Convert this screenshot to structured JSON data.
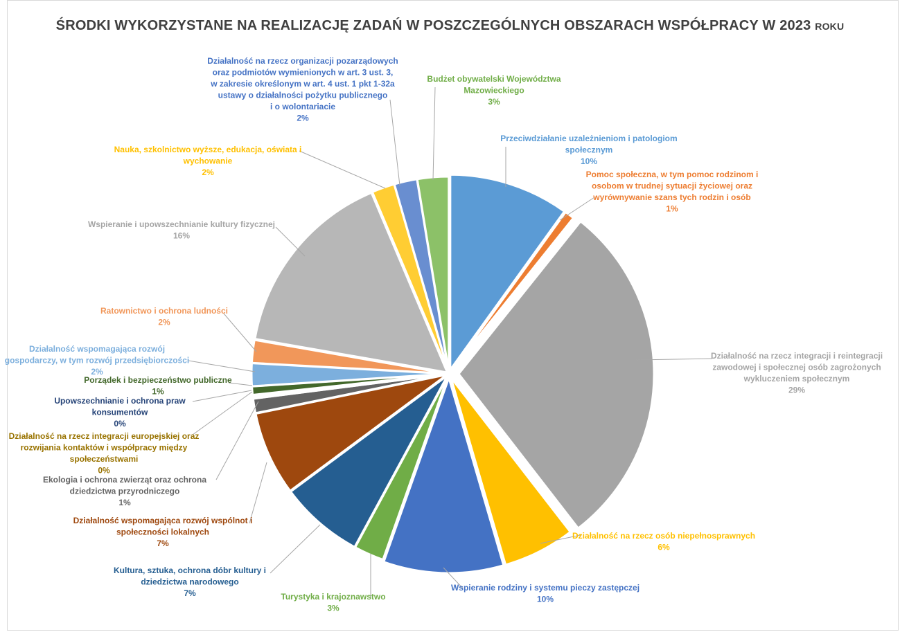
{
  "chart_data": {
    "type": "pie",
    "title": "ŚRODKI WYKORZYSTANE NA REALIZACJĘ ZADAŃ W POSZCZEGÓLNYCH OBSZARACH WSPÓŁPRACY",
    "title_tail_year": "W 2023",
    "title_tail_word": "ROKU",
    "slices": [
      {
        "name": "Przeciwdziałanie uzależnieniom i patologiom społecznym",
        "value": 10,
        "label": "10%",
        "color": "#5B9BD5",
        "lines": [
          "Przeciwdziałanie uzależnieniom i patologiom",
          "społecznym"
        ]
      },
      {
        "name": "Pomoc społeczna, w tym pomoc rodzinom i osobom w trudnej sytuacji życiowej oraz wyrównywanie szans tych rodzin i osób",
        "value": 0.8,
        "label": "1%",
        "color": "#ED7D31",
        "lines": [
          "Pomoc społeczna, w tym pomoc rodzinom i",
          "osobom w trudnej sytuacji życiowej oraz",
          "wyrównywanie szans tych rodzin i osób"
        ]
      },
      {
        "name": "Działalność na rzecz integracji i reintegracji zawodowej i społecznej osób zagrożonych wykluczeniem społecznym",
        "value": 29,
        "label": "29%",
        "color": "#A5A5A5",
        "lines": [
          "Działalność na rzecz integracji i reintegracji",
          "zawodowej i społecznej osób zagrożonych",
          "wykluczeniem społecznym"
        ]
      },
      {
        "name": "Działalność na rzecz osób niepełnosprawnych",
        "value": 6,
        "label": "6%",
        "color": "#FFC000",
        "lines": [
          "Działalność na rzecz osób niepełnosprawnych"
        ]
      },
      {
        "name": "Wspieranie rodziny i systemu pieczy zastępczej",
        "value": 10,
        "label": "10%",
        "color": "#4472C4",
        "lines": [
          "Wspieranie rodziny i systemu pieczy zastępczej"
        ]
      },
      {
        "name": "Turystyka i krajoznawstwo",
        "value": 2.5,
        "label": "3%",
        "color": "#70AD47",
        "lines": [
          "Turystyka i krajoznawstwo"
        ]
      },
      {
        "name": "Kultura, sztuka, ochrona dóbr kultury i dziedzictwa narodowego",
        "value": 7,
        "label": "7%",
        "color": "#255E91",
        "lines": [
          "Kultura, sztuka, ochrona dóbr kultury i",
          "dziedzictwa narodowego"
        ]
      },
      {
        "name": "Działalność wspomagająca rozwój wspólnot i społeczności lokalnych",
        "value": 7,
        "label": "7%",
        "color": "#9E480E",
        "lines": [
          "Działalność wspomagająca rozwój wspólnot i",
          "społeczności lokalnych"
        ]
      },
      {
        "name": "Ekologia i ochrona zwierząt oraz ochrona dziedzictwa przyrodniczego",
        "value": 1.2,
        "label": "1%",
        "color": "#636363",
        "lines": [
          "Ekologia i ochrona zwierząt oraz ochrona",
          "dziedzictwa przyrodniczego"
        ]
      },
      {
        "name": "Działalność na rzecz integracji europejskiej oraz rozwijania kontaktów i współpracy między społeczeństwami",
        "value": 0.15,
        "label": "0%",
        "color": "#997300",
        "lines": [
          "Działalność na rzecz integracji europejskiej oraz",
          "rozwijania kontaktów i współpracy między",
          "społeczeństwami"
        ]
      },
      {
        "name": "Upowszechnianie i ochrona praw konsumentów",
        "value": 0.15,
        "label": "0%",
        "color": "#264478",
        "lines": [
          "Upowszechnianie i ochrona praw",
          "konsumentów"
        ]
      },
      {
        "name": "Porządek i bezpieczeństwo publiczne",
        "value": 0.7,
        "label": "1%",
        "color": "#43682B",
        "lines": [
          "Porządek i bezpieczeństwo publiczne"
        ]
      },
      {
        "name": "Działalność wspomagająca rozwój gospodarczy, w tym rozwój przedsiębiorczości",
        "value": 1.9,
        "label": "2%",
        "color": "#7CAFDD",
        "lines": [
          "Działalność wspomagająca rozwój",
          "gospodarczy, w tym rozwój przedsiębiorczości"
        ]
      },
      {
        "name": "Ratownictwo i ochrona ludności",
        "value": 1.9,
        "label": "2%",
        "color": "#F1975A",
        "lines": [
          "Ratownictwo i ochrona ludności"
        ]
      },
      {
        "name": "Wspieranie i upowszechnianie kultury fizycznej",
        "value": 16,
        "label": "16%",
        "color": "#B7B7B7",
        "lines": [
          "Wspieranie i upowszechnianie kultury fizycznej"
        ]
      },
      {
        "name": "Nauka, szkolnictwo wyższe, edukacja, oświata i wychowanie",
        "value": 1.9,
        "label": "2%",
        "color": "#FFCD33",
        "lines": [
          "Nauka, szkolnictwo wyższe, edukacja, oświata i",
          "wychowanie"
        ]
      },
      {
        "name": "Działalność na rzecz organizacji pozarządowych oraz podmiotów wymienionych w art. 3 ust. 3, w zakresie określonym w art. 4 ust. 1 pkt 1-32a ustawy o działalności pożytku publicznego i o wolontariacie",
        "value": 1.9,
        "label": "2%",
        "color": "#698ED0",
        "lines": [
          "Działalność na rzecz organizacji pozarządowych",
          "oraz podmiotów wymienionych w art. 3 ust. 3,",
          "w zakresie określonym w art. 4 ust. 1 pkt 1-32a",
          "ustawy o działalności pożytku publicznego",
          "i o wolontariacie"
        ]
      },
      {
        "name": "Budżet obywatelski Województwa Mazowieckiego",
        "value": 2.6,
        "label": "3%",
        "color": "#8CC168",
        "lines": [
          "Budżet obywatelski Województwa",
          "Mazowieckiego"
        ]
      }
    ]
  },
  "colors": {
    "title": "#404040",
    "leader": "#a6a6a6",
    "label_text": {
      "0": "#5B9BD5",
      "1": "#ED7D31",
      "2": "#A5A5A5",
      "3": "#FFC000",
      "4": "#4472C4",
      "5": "#70AD47",
      "6": "#255E91",
      "7": "#9E480E",
      "8": "#636363",
      "9": "#997300",
      "10": "#264478",
      "11": "#43682B",
      "12": "#7CAFDD",
      "13": "#F1975A",
      "14": "#A5A5A5",
      "15": "#FFC000",
      "16": "#4472C4",
      "17": "#70AD47"
    }
  }
}
